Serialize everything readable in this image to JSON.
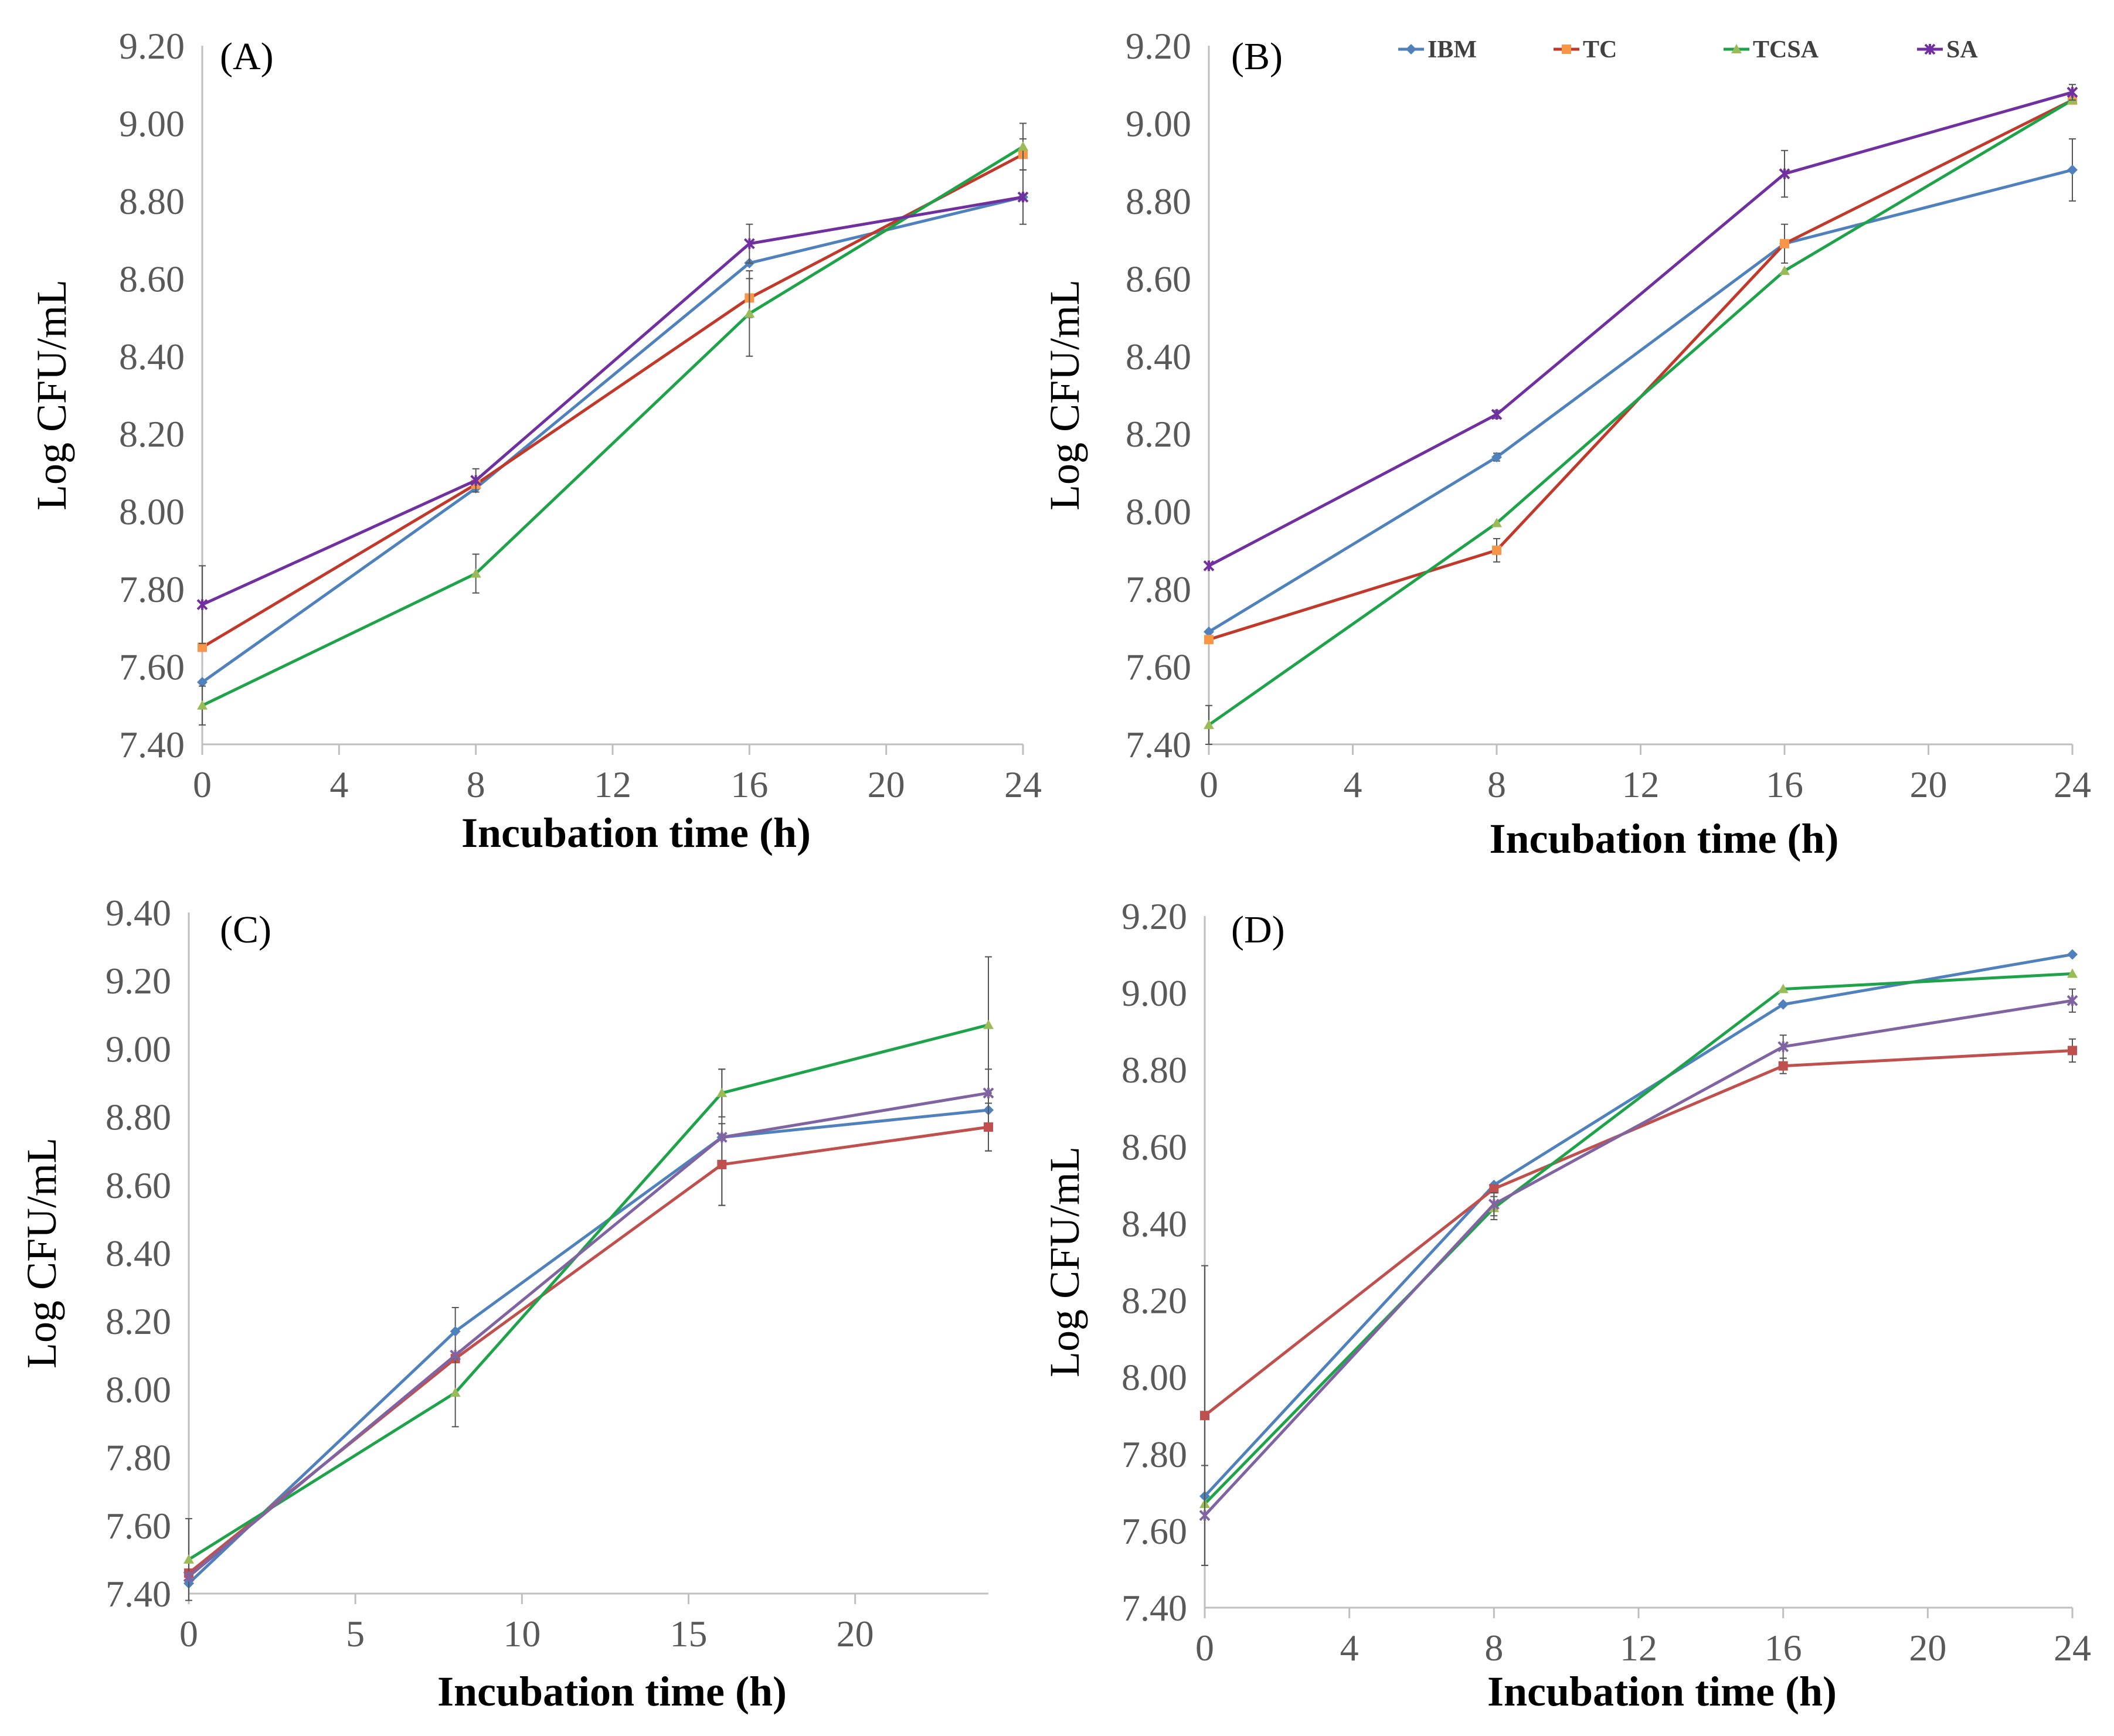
{
  "chart_data": [
    {
      "type": "line",
      "panel_label": "(A)",
      "ylabel": "Log CFU/mL",
      "xlabel": "Incubation time (h)",
      "xlim": [
        0,
        24
      ],
      "xticks": [
        0,
        4,
        8,
        12,
        16,
        20,
        24
      ],
      "xtick_labels": [
        "0",
        "4",
        "8",
        "12",
        "16",
        "20",
        "24"
      ],
      "ylim": [
        7.4,
        9.2
      ],
      "yticks": [
        7.4,
        7.6,
        7.8,
        8.0,
        8.2,
        8.4,
        8.6,
        8.8,
        9.0,
        9.2
      ],
      "ytick_labels": [
        "7.40",
        "7.60",
        "7.80",
        "8.00",
        "8.20",
        "8.40",
        "8.60",
        "8.80",
        "9.00",
        "9.20"
      ],
      "x": [
        0,
        8,
        16,
        24
      ],
      "series": [
        {
          "name": "IBM",
          "color": "#4f81bd",
          "marker_color": "#4f81bd",
          "marker": "diamond",
          "values": [
            7.56,
            8.06,
            8.64,
            8.81
          ],
          "errors": [
            0.0,
            0.0,
            0.0,
            0.0
          ]
        },
        {
          "name": "TC",
          "color": "#c0392b",
          "marker_color": "#f79646",
          "marker": "square",
          "values": [
            7.65,
            8.07,
            8.55,
            8.92
          ],
          "errors": [
            0.0,
            0.0,
            0.05,
            0.04
          ]
        },
        {
          "name": "TCSA",
          "color": "#1fa34a",
          "marker_color": "#9bbb59",
          "marker": "triangle",
          "values": [
            7.5,
            7.84,
            8.51,
            8.94
          ],
          "errors": [
            0.05,
            0.05,
            0.11,
            0.06
          ]
        },
        {
          "name": "SA",
          "color": "#7030a0",
          "marker_color": "#7030a0",
          "marker": "x",
          "values": [
            7.76,
            8.08,
            8.69,
            8.81
          ],
          "errors": [
            0.1,
            0.03,
            0.05,
            0.07
          ]
        }
      ]
    },
    {
      "type": "line",
      "panel_label": "(B)",
      "ylabel": "Log CFU/mL",
      "xlabel": "Incubation time (h)",
      "xlim": [
        0,
        24
      ],
      "xticks": [
        0,
        4,
        8,
        12,
        16,
        20,
        24
      ],
      "xtick_labels": [
        "0",
        "4",
        "8",
        "12",
        "16",
        "20",
        "24"
      ],
      "ylim": [
        7.4,
        9.2
      ],
      "yticks": [
        7.4,
        7.6,
        7.8,
        8.0,
        8.2,
        8.4,
        8.6,
        8.8,
        9.0,
        9.2
      ],
      "ytick_labels": [
        "7.40",
        "7.60",
        "7.80",
        "8.00",
        "8.20",
        "8.40",
        "8.60",
        "8.80",
        "9.00",
        "9.20"
      ],
      "x": [
        0,
        8,
        16,
        24
      ],
      "legend": {
        "position": "top",
        "entries": [
          "IBM",
          "TC",
          "TCSA",
          "SA"
        ]
      },
      "series": [
        {
          "name": "IBM",
          "color": "#4f81bd",
          "marker_color": "#4f81bd",
          "marker": "diamond",
          "values": [
            7.69,
            8.14,
            8.69,
            8.88
          ],
          "errors": [
            0.0,
            0.01,
            0.0,
            0.08
          ]
        },
        {
          "name": "TC",
          "color": "#c0392b",
          "marker_color": "#f79646",
          "marker": "square",
          "values": [
            7.67,
            7.9,
            8.69,
            9.06
          ],
          "errors": [
            0.0,
            0.03,
            0.05,
            0.0
          ]
        },
        {
          "name": "TCSA",
          "color": "#1fa34a",
          "marker_color": "#9bbb59",
          "marker": "triangle",
          "values": [
            7.45,
            7.97,
            8.62,
            9.06
          ],
          "errors": [
            0.05,
            0.0,
            0.0,
            0.0
          ]
        },
        {
          "name": "SA",
          "color": "#7030a0",
          "marker_color": "#7030a0",
          "marker": "x",
          "values": [
            7.86,
            8.25,
            8.87,
            9.08
          ],
          "errors": [
            0.0,
            0.01,
            0.06,
            0.02
          ]
        }
      ]
    },
    {
      "type": "line",
      "panel_label": "(C)",
      "ylabel": "Log CFU/mL",
      "xlabel": "Incubation time (h)",
      "xlim": [
        0,
        24
      ],
      "xticks": [
        0,
        5,
        10,
        15,
        20
      ],
      "xtick_labels": [
        "0",
        "5",
        "10",
        "15",
        "20"
      ],
      "ylim": [
        7.4,
        9.4
      ],
      "yticks": [
        7.4,
        7.6,
        7.8,
        8.0,
        8.2,
        8.4,
        8.6,
        8.8,
        9.0,
        9.2,
        9.4
      ],
      "ytick_labels": [
        "7.40",
        "7.60",
        "7.80",
        "8.00",
        "8.20",
        "8.40",
        "8.60",
        "8.80",
        "9.00",
        "9.20",
        "9.40"
      ],
      "x": [
        0,
        8,
        16,
        24
      ],
      "series": [
        {
          "name": "IBM",
          "color": "#4f81bd",
          "marker_color": "#4f81bd",
          "marker": "diamond",
          "values": [
            7.43,
            8.17,
            8.74,
            8.82
          ],
          "errors": [
            0.0,
            0.07,
            0.2,
            0.12
          ]
        },
        {
          "name": "TC",
          "color": "#c0504d",
          "marker_color": "#c0504d",
          "marker": "square",
          "values": [
            7.46,
            8.09,
            8.66,
            8.77
          ],
          "errors": [
            0.0,
            0.0,
            0.12,
            0.07
          ]
        },
        {
          "name": "TCSA",
          "color": "#1fa34a",
          "marker_color": "#9bbb59",
          "marker": "triangle",
          "values": [
            7.5,
            7.99,
            8.87,
            9.07
          ],
          "errors": [
            0.12,
            0.1,
            0.07,
            0.2
          ]
        },
        {
          "name": "SA",
          "color": "#8064a2",
          "marker_color": "#8064a2",
          "marker": "x",
          "values": [
            7.45,
            8.1,
            8.74,
            8.87
          ],
          "errors": [
            0.0,
            0.0,
            0.0,
            0.0
          ]
        }
      ]
    },
    {
      "type": "line",
      "panel_label": "(D)",
      "ylabel": "Log CFU/mL",
      "xlabel": "Incubation time (h)",
      "xlim": [
        0,
        24
      ],
      "xticks": [
        0,
        4,
        8,
        12,
        16,
        20,
        24
      ],
      "xtick_labels": [
        "0",
        "4",
        "8",
        "12",
        "16",
        "20",
        "24"
      ],
      "ylim": [
        7.4,
        9.2
      ],
      "yticks": [
        7.4,
        7.6,
        7.8,
        8.0,
        8.2,
        8.4,
        8.6,
        8.8,
        9.0,
        9.2
      ],
      "ytick_labels": [
        "7.40",
        "7.60",
        "7.80",
        "8.00",
        "8.20",
        "8.40",
        "8.60",
        "8.80",
        "9.00",
        "9.20"
      ],
      "x": [
        0,
        8,
        16,
        24
      ],
      "series": [
        {
          "name": "IBM",
          "color": "#4f81bd",
          "marker_color": "#4f81bd",
          "marker": "diamond",
          "values": [
            7.69,
            8.5,
            8.97,
            9.1
          ],
          "errors": [
            0.0,
            0.0,
            0.0,
            0.0
          ]
        },
        {
          "name": "TC",
          "color": "#c0504d",
          "marker_color": "#c0504d",
          "marker": "square",
          "values": [
            7.9,
            8.49,
            8.81,
            8.85
          ],
          "errors": [
            0.39,
            0.0,
            0.02,
            0.03
          ]
        },
        {
          "name": "TCSA",
          "color": "#1fa34a",
          "marker_color": "#9bbb59",
          "marker": "triangle",
          "values": [
            7.67,
            8.44,
            9.01,
            9.05
          ],
          "errors": [
            0.0,
            0.03,
            0.0,
            0.0
          ]
        },
        {
          "name": "SA",
          "color": "#8064a2",
          "marker_color": "#8064a2",
          "marker": "x",
          "values": [
            7.64,
            8.45,
            8.86,
            8.98
          ],
          "errors": [
            0.13,
            0.03,
            0.03,
            0.03
          ]
        }
      ]
    }
  ]
}
